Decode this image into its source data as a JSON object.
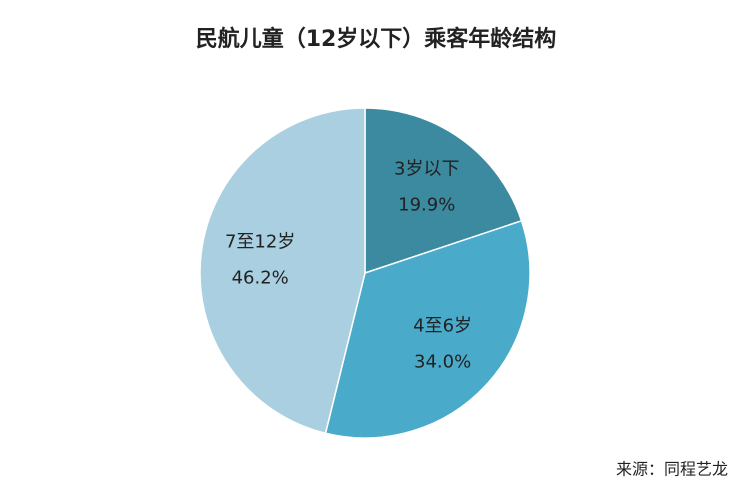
{
  "chart_data": {
    "type": "pie",
    "title": "民航儿童（12岁以下）乘客年龄结构",
    "categories": [
      "3岁以下",
      "4至6岁",
      "7至12岁"
    ],
    "values": [
      19.9,
      34.0,
      46.2
    ],
    "value_labels": [
      "19.9%",
      "34.0%",
      "46.2%"
    ],
    "colors": [
      "#3b8aa0",
      "#4aaaca",
      "#a9cfe0"
    ],
    "source": "来源：同程艺龙"
  }
}
